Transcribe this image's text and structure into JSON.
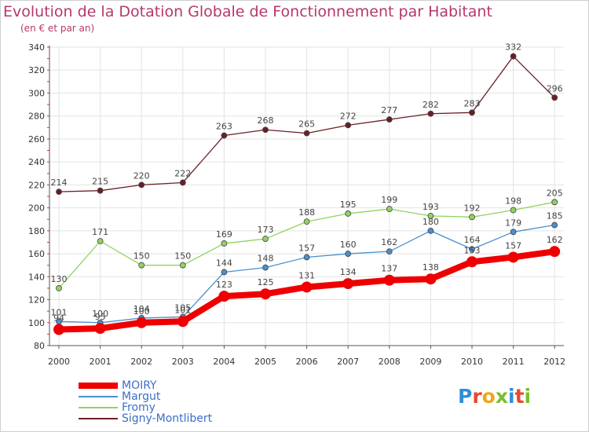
{
  "title": "Evolution de la Dotation Globale de Fonctionnement par Habitant",
  "subtitle": "(en € et par an)",
  "logo": {
    "text": "Proxiti",
    "letter_colors": [
      "#2e8fd6",
      "#e8492e",
      "#f2a51a",
      "#7bbf2a",
      "#2e8fd6",
      "#e8492e",
      "#7bbf2a"
    ]
  },
  "chart_data": {
    "type": "line",
    "title": "Evolution de la Dotation Globale de Fonctionnement par Habitant",
    "subtitle": "(en € et par an)",
    "x": [
      "2000",
      "2001",
      "2002",
      "2003",
      "2004",
      "2005",
      "2006",
      "2007",
      "2008",
      "2009",
      "2010",
      "2011",
      "2012"
    ],
    "ylim": [
      80,
      340
    ],
    "yticks": [
      80,
      100,
      120,
      140,
      160,
      180,
      200,
      220,
      240,
      260,
      280,
      300,
      320,
      340
    ],
    "grid": true,
    "legend_position": "bottom-left",
    "series": [
      {
        "name": "Signy-Montlibert",
        "color": "#6b1e26",
        "values": [
          214,
          215,
          220,
          222,
          263,
          268,
          265,
          272,
          277,
          282,
          283,
          332,
          296
        ],
        "labels": [
          "214",
          "215",
          "220",
          "222",
          "263",
          "268",
          "265",
          "272",
          "277",
          "282",
          "283",
          "332",
          "296"
        ]
      },
      {
        "name": "Fromy",
        "color": "#8fd45e",
        "values": [
          130,
          171,
          150,
          150,
          169,
          173,
          188,
          195,
          199,
          193,
          192,
          198,
          205
        ],
        "labels": [
          "130",
          "171",
          "150",
          "150",
          "169",
          "173",
          "188",
          "195",
          "199",
          "193",
          "192",
          "198",
          "205"
        ]
      },
      {
        "name": "Margut",
        "color": "#4a8fd0",
        "values": [
          101,
          100,
          104,
          105,
          144,
          148,
          157,
          160,
          162,
          180,
          164,
          179,
          185
        ],
        "labels": [
          "101",
          "100",
          "104",
          "105",
          "144",
          "148",
          "157",
          "160",
          "162",
          "180",
          "164",
          "179",
          "185"
        ]
      },
      {
        "name": "MOIRY",
        "color": "#ee0000",
        "values": [
          94,
          95,
          100,
          101,
          123,
          125,
          131,
          134,
          137,
          138,
          153,
          157,
          162
        ],
        "labels": [
          "94",
          "95",
          "100",
          "101",
          "123",
          "125",
          "131",
          "134",
          "137",
          "138",
          "153",
          "157",
          "162"
        ]
      }
    ]
  },
  "legend": [
    {
      "name": "MOIRY",
      "color": "#ee0000",
      "thickness": 8
    },
    {
      "name": "Margut",
      "color": "#4a8fd0",
      "thickness": 2
    },
    {
      "name": "Fromy",
      "color": "#8fd45e",
      "thickness": 2
    },
    {
      "name": "Signy-Montlibert",
      "color": "#6b1e26",
      "thickness": 2
    }
  ]
}
